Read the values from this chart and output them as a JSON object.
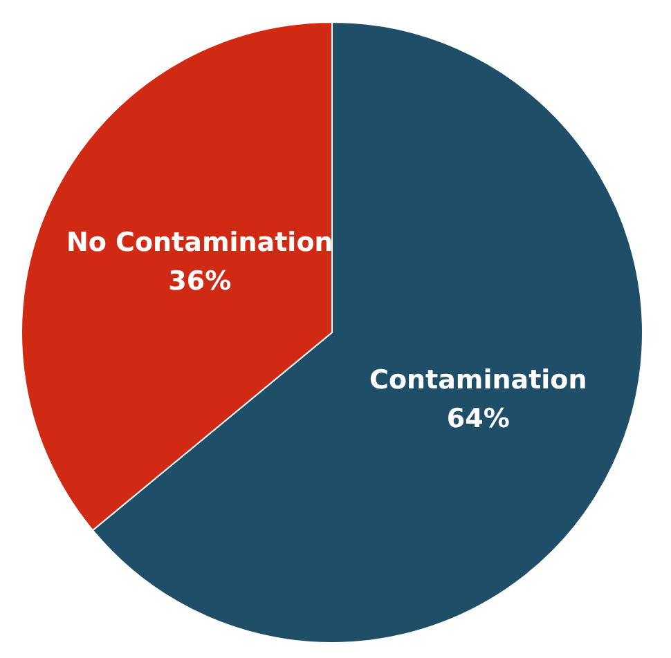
{
  "chart_data": {
    "type": "pie",
    "categories": [
      "Contamination",
      "No Contamination"
    ],
    "values": [
      64,
      36
    ],
    "value_labels": [
      "64%",
      "36%"
    ],
    "colors": [
      "#1f4e69",
      "#d02a15"
    ],
    "legend": false
  }
}
